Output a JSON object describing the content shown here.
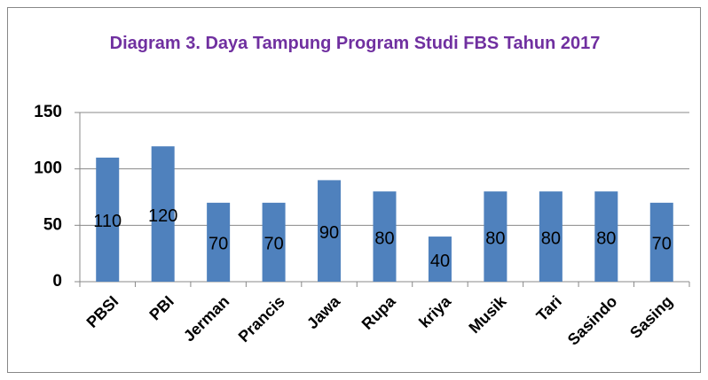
{
  "chart_data": {
    "type": "bar",
    "title": "Diagram 3. Daya Tampung Program Studi FBS Tahun 2017",
    "categories": [
      "PBSI",
      "PBI",
      "Jerman",
      "Prancis",
      "Jawa",
      "Rupa",
      "kriya",
      "Musik",
      "Tari",
      "Sasindo",
      "Sasing"
    ],
    "values": [
      110,
      120,
      70,
      70,
      90,
      80,
      40,
      80,
      80,
      80,
      70
    ],
    "color": "#4f81bd",
    "ylim": [
      0,
      150
    ],
    "yticks": [
      0,
      50,
      100,
      150
    ],
    "grid": true
  }
}
